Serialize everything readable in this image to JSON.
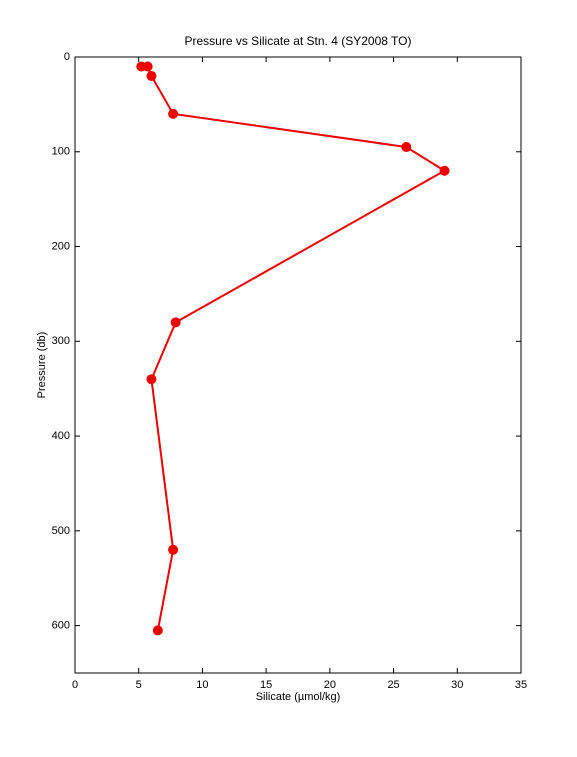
{
  "chart_data": {
    "type": "line",
    "title": "Pressure vs Silicate at Stn. 4 (SY2008 TO)",
    "xlabel": "Silicate (µmol/kg)",
    "ylabel": "Pressure (db)",
    "x": [
      5.2,
      5.7,
      6.0,
      7.7,
      26.0,
      29.0,
      7.9,
      6.0,
      7.7,
      6.5
    ],
    "series": [
      {
        "color": "#ee0000",
        "values": [
          10,
          10,
          20,
          60,
          95,
          120,
          280,
          340,
          520,
          605
        ]
      }
    ],
    "xlim": [
      0,
      35
    ],
    "xticks": [
      0,
      5,
      10,
      15,
      20,
      25,
      30,
      35
    ],
    "ylim": [
      0,
      650
    ],
    "yticks": [
      0,
      100,
      200,
      300,
      400,
      500,
      600
    ],
    "y_inverted": true,
    "grid": false
  }
}
